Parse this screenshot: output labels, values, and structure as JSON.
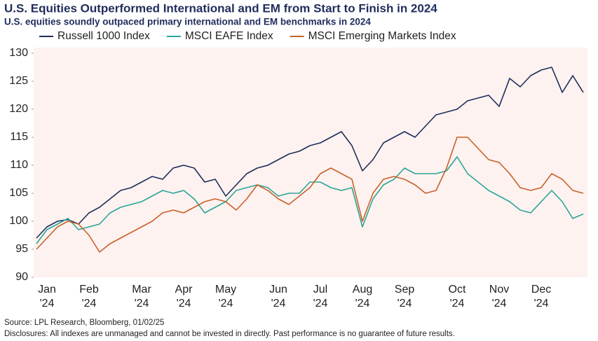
{
  "chart_data": {
    "type": "line",
    "title": "U.S. Equities Outperformed International and EM from Start to Finish in 2024",
    "subtitle": "U.S. equities soundly outpaced primary international and EM benchmarks in 2024",
    "source": "Source: LPL Research, Bloomberg, 01/02/25",
    "disclosure": "Disclosures: All indexes are unmanaged and cannot be invested in directly. Past performance is no guarantee of future results.",
    "categories": [
      null,
      "Jan '24",
      null,
      null,
      null,
      "Feb '24",
      null,
      null,
      null,
      null,
      "Mar '24",
      null,
      null,
      null,
      "Apr '24",
      null,
      null,
      null,
      "May '24",
      null,
      null,
      null,
      null,
      "Jun '24",
      null,
      null,
      null,
      "Jul '24",
      null,
      null,
      null,
      "Aug '24",
      null,
      null,
      null,
      "Sep '24",
      null,
      null,
      null,
      null,
      "Oct '24",
      null,
      null,
      null,
      "Nov '24",
      null,
      null,
      null,
      "Dec '24",
      null,
      null,
      null,
      null
    ],
    "series": [
      {
        "name": "Russell 1000 Index",
        "color": "#1f2d5c",
        "values": [
          97,
          99,
          100,
          100.3,
          99.5,
          101.5,
          102.5,
          104,
          105.5,
          106,
          107,
          108,
          107.5,
          109.5,
          110,
          109.5,
          107,
          107.5,
          104.5,
          106.5,
          108.5,
          109.5,
          110,
          111,
          112,
          112.5,
          113.5,
          114,
          115,
          116,
          113.5,
          109,
          111,
          114,
          115,
          116,
          115,
          117,
          119,
          119.5,
          120,
          121.5,
          122,
          122.5,
          120.5,
          125.5,
          124,
          126,
          127,
          127.5,
          123,
          126,
          123
        ]
      },
      {
        "name": "MSCI EAFE Index",
        "color": "#2ba596",
        "values": [
          96,
          98.5,
          99.5,
          100.5,
          98.5,
          99,
          99.5,
          101.5,
          102.5,
          103,
          103.5,
          104.5,
          105.5,
          105,
          105.5,
          104,
          101.5,
          102.5,
          103.5,
          105.5,
          106,
          106.5,
          106,
          104.5,
          105,
          105,
          107,
          107,
          106,
          105.5,
          106,
          99,
          104,
          106.5,
          107.5,
          109.5,
          108.5,
          108.5,
          108.5,
          109,
          111.5,
          108.5,
          107,
          105.5,
          104.5,
          103.5,
          102,
          101.5,
          103.5,
          105.5,
          103.5,
          100.5,
          101.3
        ]
      },
      {
        "name": "MSCI Emerging Markets Index",
        "color": "#c8612b",
        "values": [
          95,
          97,
          99,
          100,
          99.5,
          97.5,
          94.5,
          96,
          97,
          98,
          99,
          100,
          101.5,
          102,
          101.5,
          102.5,
          103.5,
          104,
          103.5,
          102,
          104,
          106.5,
          105.5,
          104,
          103,
          104.5,
          106,
          108.5,
          109.5,
          108.5,
          107.5,
          100,
          105,
          107.5,
          108,
          107.5,
          106.5,
          105,
          105.5,
          109.5,
          115,
          115,
          113,
          111,
          110.5,
          108.5,
          106,
          105.5,
          106,
          108.5,
          107.5,
          105.5,
          105
        ]
      }
    ],
    "ylim": [
      90,
      130
    ],
    "yticks": [
      90,
      95,
      100,
      105,
      110,
      115,
      120,
      125,
      130
    ]
  }
}
